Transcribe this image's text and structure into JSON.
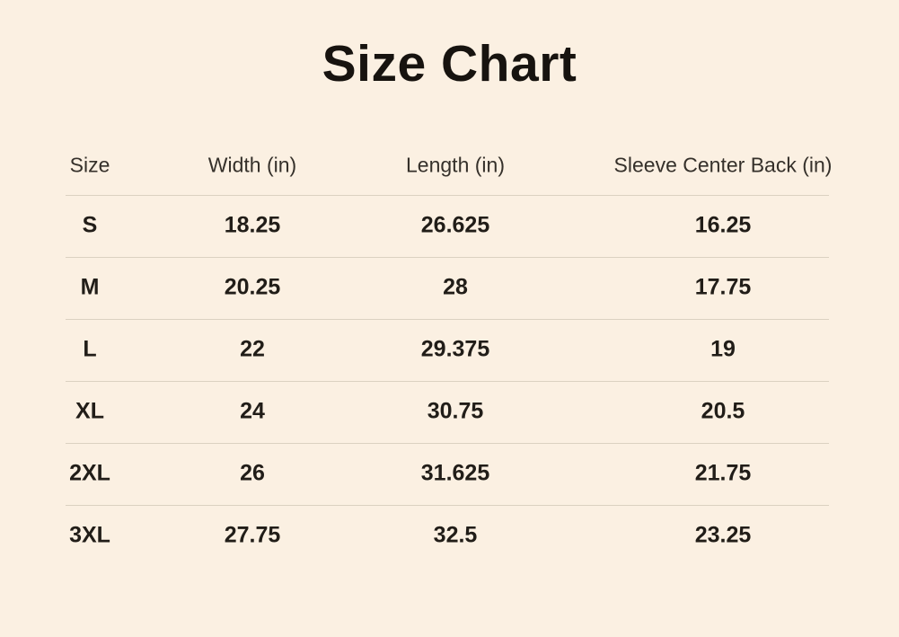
{
  "title": "Size Chart",
  "table": {
    "headers": {
      "size": "Size",
      "width": "Width (in)",
      "length": "Length (in)",
      "sleeve": "Sleeve Center Back (in)"
    },
    "rows": [
      {
        "size": "S",
        "width": "18.25",
        "length": "26.625",
        "sleeve": "16.25"
      },
      {
        "size": "M",
        "width": "20.25",
        "length": "28",
        "sleeve": "17.75"
      },
      {
        "size": "L",
        "width": "22",
        "length": "29.375",
        "sleeve": "19"
      },
      {
        "size": "XL",
        "width": "24",
        "length": "30.75",
        "sleeve": "20.5"
      },
      {
        "size": "2XL",
        "width": "26",
        "length": "31.625",
        "sleeve": "21.75"
      },
      {
        "size": "3XL",
        "width": "27.75",
        "length": "32.5",
        "sleeve": "23.25"
      }
    ]
  },
  "colors": {
    "background": "#fbf0e2",
    "title_text": "#17130f",
    "header_text": "#35302a",
    "data_text": "#211d18",
    "divider": "#dbd1c1"
  },
  "chart_data": {
    "type": "table",
    "title": "Size Chart",
    "columns": [
      "Size",
      "Width (in)",
      "Length (in)",
      "Sleeve Center Back (in)"
    ],
    "rows": [
      [
        "S",
        18.25,
        26.625,
        16.25
      ],
      [
        "M",
        20.25,
        28,
        17.75
      ],
      [
        "L",
        22,
        29.375,
        19
      ],
      [
        "XL",
        24,
        30.75,
        20.5
      ],
      [
        "2XL",
        26,
        31.625,
        21.75
      ],
      [
        "3XL",
        27.75,
        32.5,
        23.25
      ]
    ],
    "units": "inches",
    "layout": "header row divided from body by hairline; hairline between every row; no outer borders; no line under last row"
  }
}
